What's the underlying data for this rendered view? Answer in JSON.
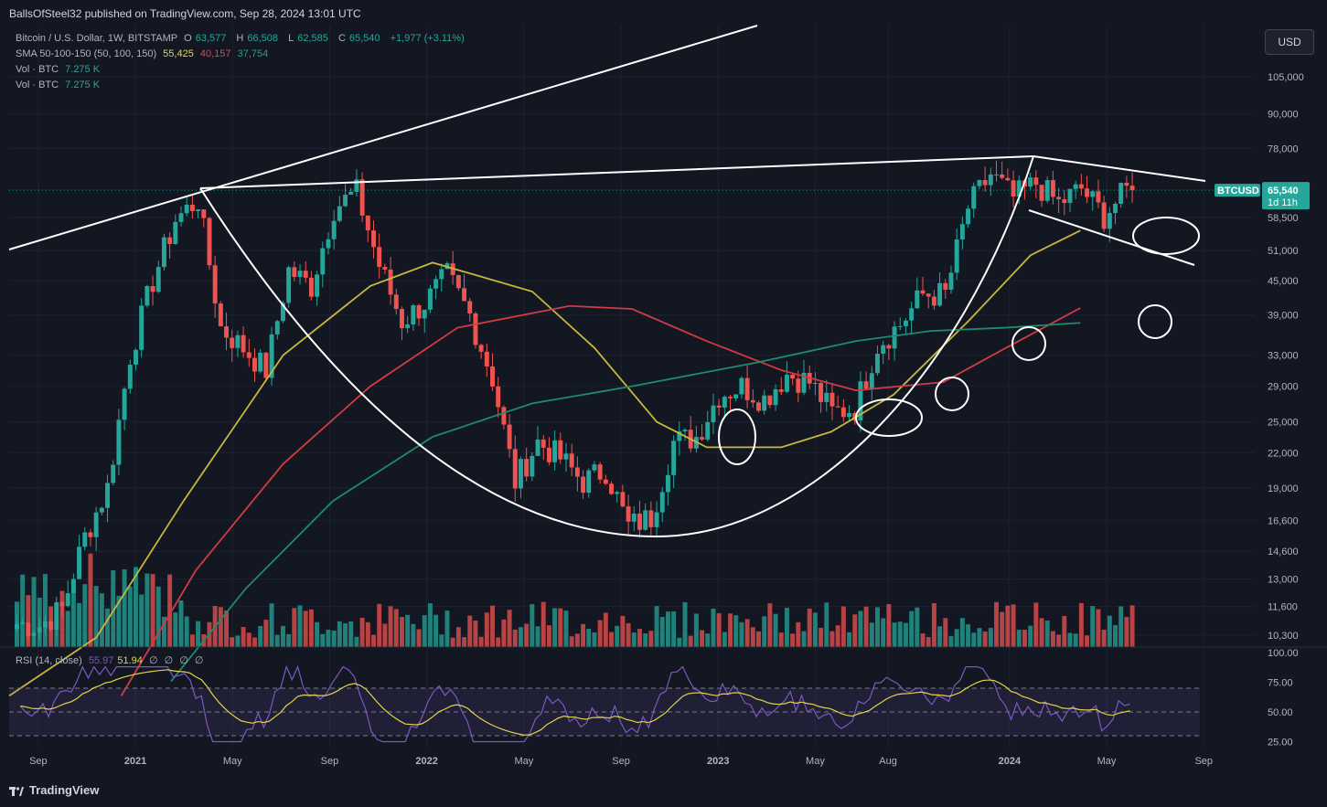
{
  "header": {
    "published": "BallsOfSteel32 published on TradingView.com, Sep 28, 2024 13:01 UTC",
    "symbol": "Bitcoin / U.S. Dollar, 1W, BITSTAMP",
    "o_label": "O",
    "o_value": "63,577",
    "h_label": "H",
    "h_value": "66,508",
    "l_label": "L",
    "l_value": "62,585",
    "c_label": "C",
    "c_value": "65,540",
    "change": "+1,977 (+3.11%)",
    "sma_label": "SMA 50-100-150 (50, 100, 150)",
    "sma50": "55,425",
    "sma100": "40,157",
    "sma150": "37,754",
    "vol1_label": "Vol · BTC",
    "vol1_value": "7.275 K",
    "vol2_label": "Vol · BTC",
    "vol2_value": "7.275 K"
  },
  "currency_button": "USD",
  "price_tag": {
    "symbol": "BTCUSD",
    "price": "65,540",
    "countdown": "1d 11h"
  },
  "rsi": {
    "label": "RSI (14, close)",
    "value": "55.97",
    "ma": "51.94",
    "extra": [
      "∅",
      "∅",
      "∅",
      "∅"
    ]
  },
  "footer": {
    "brand": "TradingView"
  },
  "colors": {
    "up": "#26a69a",
    "down": "#ef5350",
    "sma50": "#c7b73f",
    "sma100": "#d23a45",
    "sma150": "#1e8b6e",
    "rsi": "#7e57c2"
  },
  "chart_data": {
    "type": "candlestick",
    "title": "Bitcoin / U.S. Dollar, 1W, BITSTAMP",
    "scale": "log",
    "ylim": [
      9800,
      130000
    ],
    "y_ticks": [
      10300,
      11600,
      13000,
      14600,
      16600,
      19000,
      22000,
      25000,
      29000,
      33000,
      39000,
      45000,
      51000,
      58500,
      78000,
      90000,
      105000
    ],
    "y_tick_labels": [
      "10,300",
      "11,600",
      "13,000",
      "14,600",
      "16,600",
      "19,000",
      "22,000",
      "25,000",
      "29,000",
      "33,000",
      "39,000",
      "45,000",
      "51,000",
      "58,500",
      "78,000",
      "90,000",
      "105,000"
    ],
    "x_tick_labels": [
      "Sep",
      "2021",
      "May",
      "Sep",
      "2022",
      "May",
      "Sep",
      "2023",
      "May",
      "Aug",
      "2024",
      "May",
      "Sep"
    ],
    "anchors": [
      {
        "x": "2020-08",
        "price": 10800
      },
      {
        "x": "2020-09",
        "price": 10700
      },
      {
        "x": "2020-10",
        "price": 11500
      },
      {
        "x": "2020-11",
        "price": 15500
      },
      {
        "x": "2020-12",
        "price": 19000
      },
      {
        "x": "2021-01",
        "price": 33000
      },
      {
        "x": "2021-02",
        "price": 45000
      },
      {
        "x": "2021-03",
        "price": 58000
      },
      {
        "x": "2021-04",
        "price": 63000
      },
      {
        "x": "2021-05",
        "price": 37000
      },
      {
        "x": "2021-06",
        "price": 34000
      },
      {
        "x": "2021-07",
        "price": 31000
      },
      {
        "x": "2021-08",
        "price": 47000
      },
      {
        "x": "2021-09",
        "price": 44000
      },
      {
        "x": "2021-10",
        "price": 61000
      },
      {
        "x": "2021-11",
        "price": 65000
      },
      {
        "x": "2021-12",
        "price": 48000
      },
      {
        "x": "2022-01",
        "price": 38000
      },
      {
        "x": "2022-02",
        "price": 41000
      },
      {
        "x": "2022-03",
        "price": 46000
      },
      {
        "x": "2022-04",
        "price": 39000
      },
      {
        "x": "2022-05",
        "price": 30000
      },
      {
        "x": "2022-06",
        "price": 19500
      },
      {
        "x": "2022-07",
        "price": 23000
      },
      {
        "x": "2022-08",
        "price": 21500
      },
      {
        "x": "2022-09",
        "price": 19500
      },
      {
        "x": "2022-10",
        "price": 20500
      },
      {
        "x": "2022-11",
        "price": 16200
      },
      {
        "x": "2022-12",
        "price": 16800
      },
      {
        "x": "2023-01",
        "price": 23000
      },
      {
        "x": "2023-02",
        "price": 23500
      },
      {
        "x": "2023-03",
        "price": 28000
      },
      {
        "x": "2023-04",
        "price": 29000
      },
      {
        "x": "2023-05",
        "price": 27500
      },
      {
        "x": "2023-06",
        "price": 30500
      },
      {
        "x": "2023-07",
        "price": 29500
      },
      {
        "x": "2023-08",
        "price": 26000
      },
      {
        "x": "2023-09",
        "price": 26500
      },
      {
        "x": "2023-10",
        "price": 34500
      },
      {
        "x": "2023-11",
        "price": 37500
      },
      {
        "x": "2023-12",
        "price": 42500
      },
      {
        "x": "2024-01",
        "price": 42500
      },
      {
        "x": "2024-02",
        "price": 61000
      },
      {
        "x": "2024-03",
        "price": 70000
      },
      {
        "x": "2024-04",
        "price": 63500
      },
      {
        "x": "2024-05",
        "price": 67500
      },
      {
        "x": "2024-06",
        "price": 62000
      },
      {
        "x": "2024-07",
        "price": 66000
      },
      {
        "x": "2024-08",
        "price": 59000
      },
      {
        "x": "2024-09",
        "price": 65540
      }
    ],
    "sma": [
      {
        "name": "SMA 50",
        "values": [
          [
            0,
            8000
          ],
          [
            0.07,
            10200
          ],
          [
            0.14,
            18000
          ],
          [
            0.22,
            33000
          ],
          [
            0.29,
            44000
          ],
          [
            0.34,
            48500
          ],
          [
            0.42,
            43000
          ],
          [
            0.47,
            34000
          ],
          [
            0.52,
            25000
          ],
          [
            0.56,
            22500
          ],
          [
            0.62,
            22500
          ],
          [
            0.66,
            24000
          ],
          [
            0.71,
            28000
          ],
          [
            0.77,
            38000
          ],
          [
            0.82,
            50000
          ],
          [
            0.86,
            55425
          ]
        ]
      },
      {
        "name": "SMA 100",
        "values": [
          [
            0.09,
            8000
          ],
          [
            0.15,
            13500
          ],
          [
            0.22,
            21000
          ],
          [
            0.29,
            29000
          ],
          [
            0.36,
            37000
          ],
          [
            0.45,
            40500
          ],
          [
            0.5,
            40000
          ],
          [
            0.56,
            35000
          ],
          [
            0.62,
            31000
          ],
          [
            0.68,
            28500
          ],
          [
            0.75,
            29500
          ],
          [
            0.8,
            34000
          ],
          [
            0.86,
            40157
          ]
        ]
      },
      {
        "name": "SMA 150",
        "values": [
          [
            0.13,
            8500
          ],
          [
            0.19,
            12500
          ],
          [
            0.26,
            18000
          ],
          [
            0.34,
            23500
          ],
          [
            0.42,
            27000
          ],
          [
            0.5,
            29000
          ],
          [
            0.6,
            32000
          ],
          [
            0.68,
            35000
          ],
          [
            0.74,
            36500
          ],
          [
            0.8,
            37000
          ],
          [
            0.86,
            37754
          ]
        ]
      }
    ],
    "volume_axis": "relative",
    "rsi_ylim": [
      20,
      100
    ],
    "rsi_ticks": [
      25,
      50,
      75,
      100
    ],
    "rsi_tick_labels": [
      "25.00",
      "50.00",
      "75.00",
      "100.00"
    ],
    "rsi_bands": [
      30,
      70
    ],
    "last_price": 65540
  }
}
